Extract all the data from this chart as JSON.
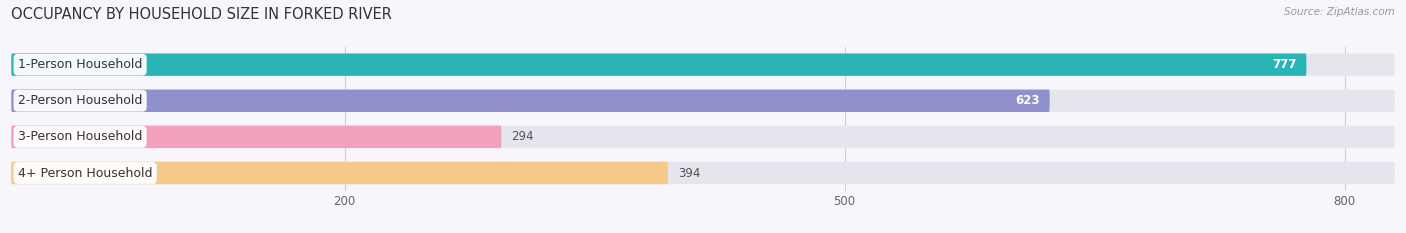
{
  "title": "OCCUPANCY BY HOUSEHOLD SIZE IN FORKED RIVER",
  "source": "Source: ZipAtlas.com",
  "categories": [
    "1-Person Household",
    "2-Person Household",
    "3-Person Household",
    "4+ Person Household"
  ],
  "values": [
    777,
    623,
    294,
    394
  ],
  "bar_colors": [
    "#29b5b5",
    "#9090cc",
    "#f2a0bb",
    "#f5c98a"
  ],
  "bar_bg_color": "#e5e5ee",
  "value_label_colors": [
    "#ffffff",
    "#ffffff",
    "#666666",
    "#666666"
  ],
  "xlim_max": 830,
  "xticks": [
    200,
    500,
    800
  ],
  "figsize": [
    14.06,
    2.33
  ],
  "dpi": 100,
  "title_fontsize": 10.5,
  "bar_height": 0.62,
  "label_fontsize": 9,
  "value_fontsize": 8.5,
  "bg_color": "#f7f7fb"
}
